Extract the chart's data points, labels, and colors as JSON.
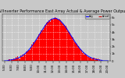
{
  "title": "Solar PV/Inverter Performance East Array Actual & Average Power Output",
  "bg_color": "#c8c8c8",
  "plot_bg_color": "#c8c8c8",
  "grid_color": "#ffffff",
  "fill_color": "#ff0000",
  "fill_alpha": 1.0,
  "avg_line_color": "#0000ff",
  "peak_hour": 12.3,
  "sigma": 2.3,
  "peak_power": 5900,
  "ylim": [
    0,
    6500
  ],
  "xlim_start": 5.0,
  "xlim_end": 20.0,
  "num_bars": 180,
  "x_ticks": [
    5,
    6,
    7,
    8,
    9,
    10,
    11,
    12,
    13,
    14,
    15,
    16,
    17,
    18,
    19,
    20
  ],
  "y_ticks": [
    0,
    1000,
    2000,
    3000,
    4000,
    5000,
    6000
  ],
  "y_tick_labels": [
    "0",
    "1k",
    "2k",
    "3k",
    "4k",
    "5k",
    "6k"
  ],
  "title_fontsize": 3.5,
  "tick_fontsize": 2.8,
  "legend_fontsize": 2.2
}
